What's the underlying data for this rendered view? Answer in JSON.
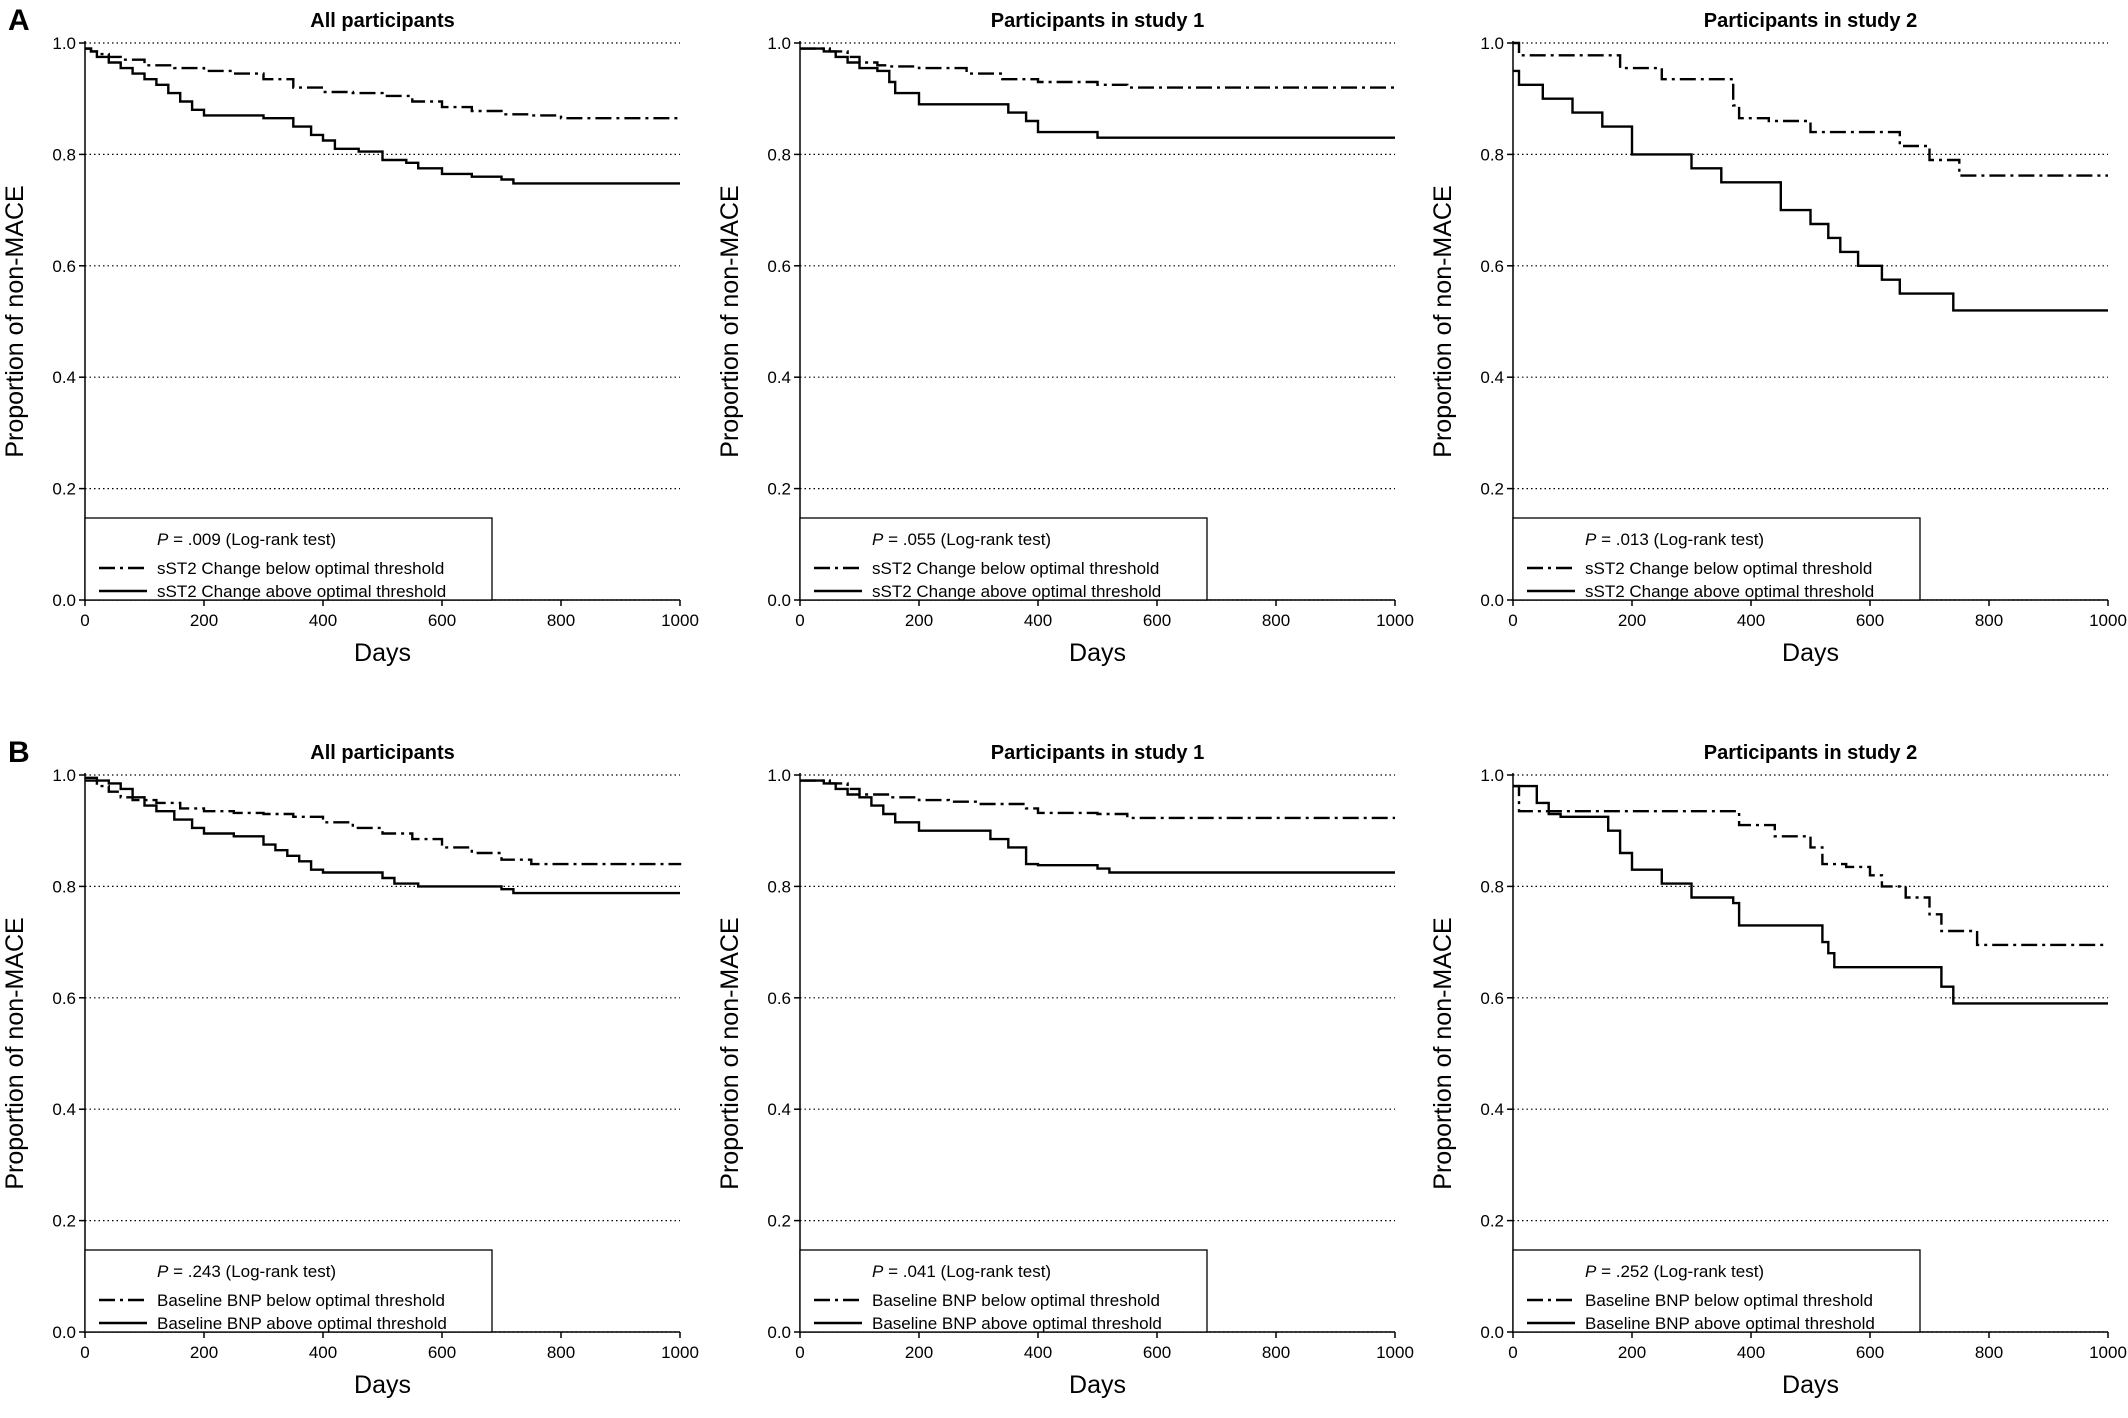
{
  "figure": {
    "rows": [
      {
        "label": "A",
        "legend": {
          "below": "sST2 Change below optimal threshold",
          "above": "sST2 Change above optimal threshold"
        }
      },
      {
        "label": "B",
        "legend": {
          "below": "Baseline BNP below optimal threshold",
          "above": "Baseline BNP above optimal threshold"
        }
      }
    ],
    "p_label": "P",
    "test_suffix": " (Log-rank test)"
  },
  "chart_data": [
    {
      "type": "line",
      "row": 0,
      "col": 0,
      "title": "All participants",
      "xlabel": "Days",
      "ylabel": "Proportion of non-MACE",
      "xlim": [
        0,
        1000
      ],
      "ylim": [
        0,
        1
      ],
      "xticks": [
        "0",
        "200",
        "400",
        "600",
        "800",
        "1000"
      ],
      "yticks": [
        "0.0",
        "0.2",
        "0.4",
        "0.6",
        "0.8",
        "1.0"
      ],
      "grid": "horizontal dotted",
      "legend_position": "bottom-left",
      "p_value": "= .009",
      "series": [
        {
          "name": "sST2 Change below optimal threshold",
          "style": "dash-dot",
          "x": [
            0,
            10,
            20,
            40,
            60,
            100,
            150,
            200,
            250,
            300,
            350,
            400,
            450,
            500,
            550,
            600,
            650,
            700,
            750,
            800,
            1000
          ],
          "y": [
            0.99,
            0.985,
            0.98,
            0.975,
            0.97,
            0.96,
            0.955,
            0.95,
            0.945,
            0.935,
            0.92,
            0.912,
            0.91,
            0.905,
            0.895,
            0.885,
            0.878,
            0.872,
            0.87,
            0.865,
            0.865
          ]
        },
        {
          "name": "sST2 Change above optimal threshold",
          "style": "solid",
          "x": [
            0,
            10,
            20,
            40,
            60,
            80,
            100,
            120,
            140,
            160,
            180,
            200,
            250,
            300,
            350,
            380,
            400,
            420,
            460,
            500,
            540,
            560,
            600,
            650,
            700,
            720,
            1000
          ],
          "y": [
            0.99,
            0.985,
            0.975,
            0.965,
            0.955,
            0.945,
            0.935,
            0.925,
            0.91,
            0.895,
            0.88,
            0.87,
            0.87,
            0.865,
            0.85,
            0.835,
            0.825,
            0.81,
            0.805,
            0.79,
            0.785,
            0.775,
            0.765,
            0.76,
            0.755,
            0.748,
            0.748
          ]
        }
      ]
    },
    {
      "type": "line",
      "row": 0,
      "col": 1,
      "title": "Participants in study 1",
      "xlabel": "Days",
      "ylabel": "Proportion of non-MACE",
      "xlim": [
        0,
        1000
      ],
      "ylim": [
        0,
        1
      ],
      "xticks": [
        "0",
        "200",
        "400",
        "600",
        "800",
        "1000"
      ],
      "yticks": [
        "0.0",
        "0.2",
        "0.4",
        "0.6",
        "0.8",
        "1.0"
      ],
      "grid": "horizontal dotted",
      "legend_position": "bottom-left",
      "p_value": "= .055",
      "series": [
        {
          "name": "sST2 Change below optimal threshold",
          "style": "dash-dot",
          "x": [
            0,
            50,
            80,
            100,
            130,
            150,
            200,
            280,
            340,
            400,
            500,
            550,
            1000
          ],
          "y": [
            0.99,
            0.985,
            0.975,
            0.965,
            0.96,
            0.958,
            0.955,
            0.945,
            0.935,
            0.93,
            0.925,
            0.92,
            0.92
          ]
        },
        {
          "name": "sST2 Change above optimal threshold",
          "style": "solid",
          "x": [
            0,
            40,
            60,
            80,
            100,
            130,
            150,
            160,
            200,
            250,
            300,
            350,
            380,
            400,
            500,
            1000
          ],
          "y": [
            0.99,
            0.985,
            0.975,
            0.965,
            0.955,
            0.95,
            0.93,
            0.91,
            0.89,
            0.89,
            0.89,
            0.875,
            0.86,
            0.84,
            0.83,
            0.83
          ]
        }
      ]
    },
    {
      "type": "line",
      "row": 0,
      "col": 2,
      "title": "Participants in study 2",
      "xlabel": "Days",
      "ylabel": "Proportion of non-MACE",
      "xlim": [
        0,
        1000
      ],
      "ylim": [
        0,
        1
      ],
      "xticks": [
        "0",
        "200",
        "400",
        "600",
        "800",
        "1000"
      ],
      "yticks": [
        "0.0",
        "0.2",
        "0.4",
        "0.6",
        "0.8",
        "1.0"
      ],
      "grid": "horizontal dotted",
      "legend_position": "bottom-left",
      "p_value": "= .013",
      "series": [
        {
          "name": "sST2 Change below optimal threshold",
          "style": "dash-dot",
          "x": [
            0,
            10,
            180,
            250,
            370,
            380,
            430,
            500,
            560,
            650,
            700,
            750,
            1000
          ],
          "y": [
            1.0,
            0.978,
            0.955,
            0.935,
            0.888,
            0.865,
            0.86,
            0.84,
            0.84,
            0.815,
            0.79,
            0.762,
            0.762
          ]
        },
        {
          "name": "sST2 Change above optimal threshold",
          "style": "solid",
          "x": [
            0,
            10,
            50,
            100,
            150,
            200,
            300,
            350,
            400,
            450,
            500,
            530,
            550,
            580,
            620,
            650,
            700,
            740,
            1000
          ],
          "y": [
            0.95,
            0.925,
            0.9,
            0.875,
            0.85,
            0.8,
            0.775,
            0.75,
            0.75,
            0.7,
            0.675,
            0.65,
            0.625,
            0.6,
            0.575,
            0.55,
            0.55,
            0.52,
            0.52
          ]
        }
      ]
    },
    {
      "type": "line",
      "row": 1,
      "col": 0,
      "title": "All participants",
      "xlabel": "Days",
      "ylabel": "Proportion of non-MACE",
      "xlim": [
        0,
        1000
      ],
      "ylim": [
        0,
        1
      ],
      "xticks": [
        "0",
        "200",
        "400",
        "600",
        "800",
        "1000"
      ],
      "yticks": [
        "0.0",
        "0.2",
        "0.4",
        "0.6",
        "0.8",
        "1.0"
      ],
      "grid": "horizontal dotted",
      "legend_position": "bottom-left",
      "p_value": "= .243",
      "series": [
        {
          "name": "Baseline BNP below optimal threshold",
          "style": "dash-dot",
          "x": [
            0,
            20,
            40,
            60,
            80,
            120,
            160,
            200,
            250,
            300,
            350,
            400,
            450,
            500,
            550,
            600,
            650,
            700,
            750,
            1000
          ],
          "y": [
            0.99,
            0.98,
            0.97,
            0.96,
            0.955,
            0.95,
            0.94,
            0.935,
            0.932,
            0.93,
            0.925,
            0.915,
            0.905,
            0.895,
            0.885,
            0.87,
            0.86,
            0.848,
            0.84,
            0.838
          ]
        },
        {
          "name": "Baseline BNP above optimal threshold",
          "style": "solid",
          "x": [
            0,
            20,
            40,
            60,
            80,
            100,
            120,
            150,
            180,
            200,
            250,
            300,
            320,
            340,
            360,
            380,
            400,
            500,
            520,
            560,
            600,
            700,
            720,
            1000
          ],
          "y": [
            0.995,
            0.99,
            0.985,
            0.975,
            0.96,
            0.945,
            0.935,
            0.92,
            0.905,
            0.895,
            0.89,
            0.875,
            0.865,
            0.855,
            0.845,
            0.83,
            0.825,
            0.815,
            0.805,
            0.8,
            0.8,
            0.795,
            0.788,
            0.788
          ]
        }
      ]
    },
    {
      "type": "line",
      "row": 1,
      "col": 1,
      "title": "Participants in study 1",
      "xlabel": "Days",
      "ylabel": "Proportion of non-MACE",
      "xlim": [
        0,
        1000
      ],
      "ylim": [
        0,
        1
      ],
      "xticks": [
        "0",
        "200",
        "400",
        "600",
        "800",
        "1000"
      ],
      "yticks": [
        "0.0",
        "0.2",
        "0.4",
        "0.6",
        "0.8",
        "1.0"
      ],
      "grid": "horizontal dotted",
      "legend_position": "bottom-left",
      "p_value": "= .041",
      "series": [
        {
          "name": "Baseline BNP below optimal threshold",
          "style": "dash-dot",
          "x": [
            0,
            50,
            80,
            100,
            150,
            200,
            250,
            300,
            380,
            400,
            500,
            550,
            1000
          ],
          "y": [
            0.99,
            0.985,
            0.975,
            0.965,
            0.96,
            0.955,
            0.952,
            0.948,
            0.94,
            0.932,
            0.93,
            0.923,
            0.923
          ]
        },
        {
          "name": "Baseline BNP above optimal threshold",
          "style": "solid",
          "x": [
            0,
            40,
            60,
            80,
            100,
            120,
            140,
            160,
            200,
            300,
            320,
            350,
            380,
            400,
            500,
            520,
            1000
          ],
          "y": [
            0.99,
            0.985,
            0.975,
            0.965,
            0.96,
            0.945,
            0.93,
            0.915,
            0.9,
            0.9,
            0.885,
            0.87,
            0.84,
            0.838,
            0.832,
            0.825,
            0.825
          ]
        }
      ]
    },
    {
      "type": "line",
      "row": 1,
      "col": 2,
      "title": "Participants in study 2",
      "xlabel": "Days",
      "ylabel": "Proportion of non-MACE",
      "xlim": [
        0,
        1000
      ],
      "ylim": [
        0,
        1
      ],
      "xticks": [
        "0",
        "200",
        "400",
        "600",
        "800",
        "1000"
      ],
      "yticks": [
        "0.0",
        "0.2",
        "0.4",
        "0.6",
        "0.8",
        "1.0"
      ],
      "grid": "horizontal dotted",
      "legend_position": "bottom-left",
      "p_value": "= .252",
      "series": [
        {
          "name": "Baseline BNP below optimal threshold",
          "style": "dash-dot",
          "x": [
            0,
            10,
            30,
            200,
            300,
            380,
            440,
            500,
            520,
            560,
            600,
            620,
            660,
            700,
            720,
            760,
            780,
            1000
          ],
          "y": [
            0.98,
            0.935,
            0.935,
            0.935,
            0.935,
            0.91,
            0.89,
            0.87,
            0.84,
            0.835,
            0.82,
            0.8,
            0.78,
            0.75,
            0.72,
            0.72,
            0.695,
            0.695
          ]
        },
        {
          "name": "Baseline BNP above optimal threshold",
          "style": "solid",
          "x": [
            0,
            40,
            60,
            80,
            110,
            160,
            180,
            200,
            250,
            300,
            370,
            380,
            440,
            520,
            530,
            540,
            600,
            700,
            720,
            740,
            1000
          ],
          "y": [
            0.98,
            0.95,
            0.93,
            0.925,
            0.925,
            0.9,
            0.86,
            0.83,
            0.805,
            0.78,
            0.77,
            0.73,
            0.73,
            0.7,
            0.68,
            0.655,
            0.655,
            0.655,
            0.62,
            0.59,
            0.59
          ]
        }
      ]
    }
  ]
}
